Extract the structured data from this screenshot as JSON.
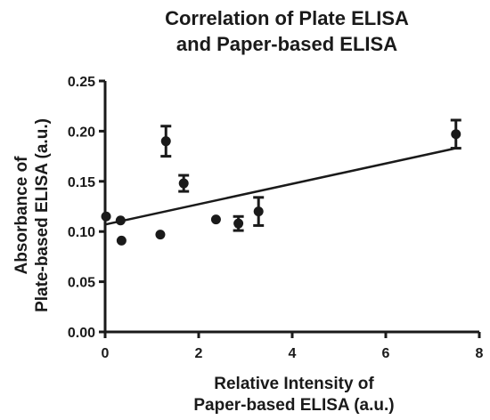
{
  "chart_data": {
    "type": "scatter",
    "title": [
      "Correlation of Plate ELISA",
      "and Paper-based ELISA"
    ],
    "xlabel": [
      "Relative Intensity of",
      "Paper-based ELISA (a.u.)"
    ],
    "ylabel": [
      "Absorbance of",
      "Plate-based ELISA (a.u.)"
    ],
    "xlim": [
      0,
      8
    ],
    "ylim": [
      0,
      0.25
    ],
    "x_ticks": [
      0,
      2,
      4,
      6,
      8
    ],
    "x_tick_labels": [
      "0",
      "2",
      "4",
      "6",
      "8"
    ],
    "y_ticks": [
      0,
      0.05,
      0.1,
      0.15,
      0.2,
      0.25
    ],
    "y_tick_labels": [
      "0.00",
      "0.05",
      "0.10",
      "0.15",
      "0.20",
      "0.25"
    ],
    "grid": false,
    "points": [
      {
        "x": 0.02,
        "y": 0.115,
        "err": 0
      },
      {
        "x": 0.33,
        "y": 0.111,
        "err": 0
      },
      {
        "x": 0.35,
        "y": 0.091,
        "err": 0
      },
      {
        "x": 1.18,
        "y": 0.097,
        "err": 0
      },
      {
        "x": 1.3,
        "y": 0.19,
        "err": 0.015
      },
      {
        "x": 1.68,
        "y": 0.148,
        "err": 0.008
      },
      {
        "x": 2.37,
        "y": 0.112,
        "err": 0
      },
      {
        "x": 2.85,
        "y": 0.108,
        "err": 0.007
      },
      {
        "x": 3.28,
        "y": 0.12,
        "err": 0.014
      },
      {
        "x": 7.5,
        "y": 0.197,
        "err": 0.014
      }
    ],
    "fit_line": {
      "x": [
        0,
        7.5
      ],
      "y": [
        0.107,
        0.183
      ]
    }
  }
}
